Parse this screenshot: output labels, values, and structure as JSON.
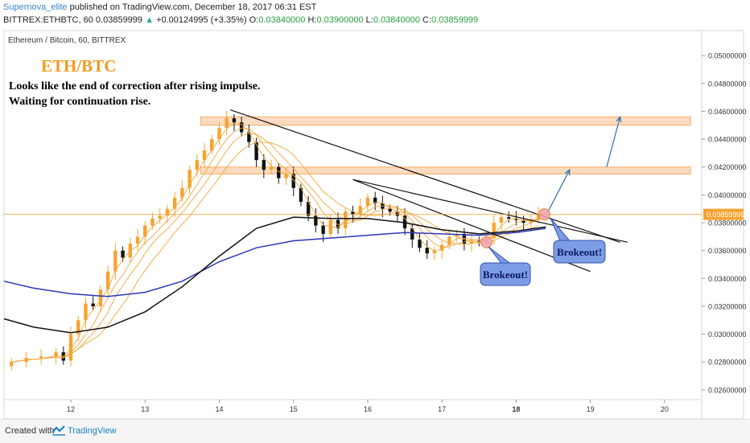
{
  "header": {
    "author": "Supernova_elite",
    "published_text": "published on TradingView.com, December 18, 2017 06:31 EST",
    "symbol": "BITTREX:ETHBTC, 60",
    "last_price": "0.03859999",
    "change_icon": "up-triangle-icon",
    "change_text": "+0.00124995 (+3.35%)",
    "o_label": "O:",
    "o_value": "0.03840000",
    "h_label": "H:",
    "h_value": "0.03900000",
    "l_label": "L:",
    "l_value": "0.03840000",
    "c_label": "C:",
    "c_value": "0.03859999"
  },
  "chart_title": "Ethereum / Bitcoin, 60, BITTREX",
  "annotations": {
    "big_title": "ETH/BTC",
    "line1": "Looks like the end of correction after rising impulse.",
    "line2": "Waiting for continuation rise.",
    "breakout1": "Brokeout!",
    "breakout2": "Brokeout!",
    "price_label": "0.03859999"
  },
  "colors": {
    "up_candle": "#f7a330",
    "down_candle": "#111111",
    "ma_blue": "#2c36b5",
    "ma_black": "#111111",
    "ribbon": "#f3a63b",
    "zone_fill": "#fcd5b4",
    "zone_stroke": "#f0a050",
    "arrow": "#2a6fb5",
    "callout_fill": "#7d9ce6",
    "callout_stroke": "#3353a8",
    "current_price_bg": "#f7a330"
  },
  "footer": {
    "created_with": "Created with",
    "brand": "TradingView",
    "logo_icon": "tradingview-logo-icon"
  },
  "chart_data": {
    "type": "candlestick",
    "title": "Ethereum / Bitcoin, 60, BITTREX",
    "xlabel": "",
    "ylabel": "",
    "x_ticks": [
      "12",
      "13",
      "14",
      "15",
      "16",
      "17",
      "18",
      "19",
      "20"
    ],
    "y_ticks": [
      "0.05000000",
      "0.04800000",
      "0.04600000",
      "0.04400000",
      "0.04200000",
      "0.04000000",
      "0.03800000",
      "0.03600000",
      "0.03400000",
      "0.03200000",
      "0.03000000",
      "0.02800000",
      "0.02600000"
    ],
    "xlim": [
      11.1,
      20.5
    ],
    "ylim": [
      0.0253,
      0.0518
    ],
    "grid": false,
    "last_price": 0.03859999,
    "candles_close_path": [
      [
        11.2,
        0.028
      ],
      [
        11.4,
        0.0283
      ],
      [
        11.6,
        0.0284
      ],
      [
        11.8,
        0.0287
      ],
      [
        11.9,
        0.0281
      ],
      [
        12.0,
        0.03
      ],
      [
        12.1,
        0.031
      ],
      [
        12.2,
        0.0322
      ],
      [
        12.3,
        0.032
      ],
      [
        12.4,
        0.0332
      ],
      [
        12.5,
        0.0345
      ],
      [
        12.6,
        0.036
      ],
      [
        12.7,
        0.0355
      ],
      [
        12.8,
        0.0365
      ],
      [
        12.9,
        0.037
      ],
      [
        13.0,
        0.0378
      ],
      [
        13.1,
        0.0383
      ],
      [
        13.2,
        0.0385
      ],
      [
        13.3,
        0.039
      ],
      [
        13.4,
        0.0398
      ],
      [
        13.5,
        0.0405
      ],
      [
        13.6,
        0.0418
      ],
      [
        13.7,
        0.0425
      ],
      [
        13.8,
        0.0432
      ],
      [
        13.9,
        0.044
      ],
      [
        14.0,
        0.0448
      ],
      [
        14.1,
        0.0455
      ],
      [
        14.2,
        0.0452
      ],
      [
        14.3,
        0.0445
      ],
      [
        14.4,
        0.0438
      ],
      [
        14.5,
        0.0425
      ],
      [
        14.6,
        0.0418
      ],
      [
        14.7,
        0.042
      ],
      [
        14.8,
        0.0412
      ],
      [
        14.9,
        0.0415
      ],
      [
        15.0,
        0.0405
      ],
      [
        15.1,
        0.0395
      ],
      [
        15.2,
        0.0385
      ],
      [
        15.3,
        0.0378
      ],
      [
        15.4,
        0.0372
      ],
      [
        15.5,
        0.0382
      ],
      [
        15.6,
        0.0376
      ],
      [
        15.7,
        0.0388
      ],
      [
        15.8,
        0.0386
      ],
      [
        15.9,
        0.0392
      ],
      [
        16.0,
        0.0398
      ],
      [
        16.1,
        0.0394
      ],
      [
        16.2,
        0.039
      ],
      [
        16.3,
        0.0388
      ],
      [
        16.4,
        0.0385
      ],
      [
        16.5,
        0.0376
      ],
      [
        16.6,
        0.0368
      ],
      [
        16.7,
        0.0362
      ],
      [
        16.8,
        0.0358
      ],
      [
        16.9,
        0.036
      ],
      [
        17.0,
        0.0364
      ],
      [
        17.1,
        0.037
      ],
      [
        17.2,
        0.0372
      ],
      [
        17.3,
        0.0365
      ],
      [
        17.4,
        0.0367
      ],
      [
        17.5,
        0.0366
      ],
      [
        17.6,
        0.0369
      ],
      [
        17.7,
        0.038
      ],
      [
        17.8,
        0.0384
      ],
      [
        17.9,
        0.0383
      ],
      [
        18.0,
        0.0382
      ],
      [
        18.1,
        0.038
      ],
      [
        18.2,
        0.0382
      ],
      [
        18.3,
        0.0386
      ]
    ],
    "series": [
      {
        "name": "",
        "color": "#2c36b5",
        "points": [
          [
            11.1,
            0.0338
          ],
          [
            11.5,
            0.0333
          ],
          [
            12.0,
            0.0329
          ],
          [
            12.5,
            0.0327
          ],
          [
            13.0,
            0.033
          ],
          [
            13.5,
            0.0338
          ],
          [
            14.0,
            0.0352
          ],
          [
            14.5,
            0.0362
          ],
          [
            15.0,
            0.0367
          ],
          [
            15.5,
            0.0369
          ],
          [
            16.0,
            0.0371
          ],
          [
            16.5,
            0.0373
          ],
          [
            17.0,
            0.0372
          ],
          [
            17.5,
            0.0371
          ],
          [
            18.0,
            0.0373
          ],
          [
            18.4,
            0.0376
          ]
        ]
      },
      {
        "name": "",
        "color": "#111111",
        "points": [
          [
            11.1,
            0.0311
          ],
          [
            11.5,
            0.0305
          ],
          [
            12.0,
            0.0301
          ],
          [
            12.5,
            0.0305
          ],
          [
            13.0,
            0.0316
          ],
          [
            13.5,
            0.0334
          ],
          [
            14.0,
            0.0356
          ],
          [
            14.5,
            0.0376
          ],
          [
            15.0,
            0.0384
          ],
          [
            15.5,
            0.0383
          ],
          [
            16.0,
            0.0383
          ],
          [
            16.5,
            0.038
          ],
          [
            17.0,
            0.0375
          ],
          [
            17.5,
            0.0372
          ],
          [
            18.0,
            0.0374
          ],
          [
            18.4,
            0.0377
          ]
        ]
      }
    ],
    "zones": [
      [
        13.75,
        20.35,
        0.045,
        0.0456
      ],
      [
        13.75,
        20.35,
        0.0415,
        0.042
      ]
    ],
    "trendlines": [
      [
        14.15,
        0.0461,
        19.4,
        0.0366
      ],
      [
        15.8,
        0.0411,
        19.5,
        0.0366
      ],
      [
        15.8,
        0.0411,
        19.0,
        0.0345
      ]
    ],
    "arrows": [
      [
        18.42,
        0.0387,
        18.72,
        0.0418
      ],
      [
        19.22,
        0.042,
        19.4,
        0.0456
      ]
    ]
  }
}
